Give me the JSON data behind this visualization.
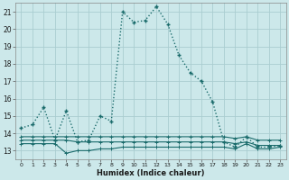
{
  "xlabel": "Humidex (Indice chaleur)",
  "bg_color": "#cce8ea",
  "grid_color": "#aacdd0",
  "line_color": "#1a6b6b",
  "xlim": [
    -0.5,
    23.5
  ],
  "ylim": [
    12.5,
    21.5
  ],
  "yticks": [
    13,
    14,
    15,
    16,
    17,
    18,
    19,
    20,
    21
  ],
  "xtick_labels": [
    "0",
    "1",
    "2",
    "3",
    "4",
    "5",
    "6",
    "7",
    "8",
    "9",
    "10",
    "11",
    "12",
    "13",
    "14",
    "15",
    "16",
    "17",
    "18",
    "19",
    "20",
    "21",
    "22",
    "23"
  ],
  "series1_x": [
    0,
    1,
    2,
    3,
    4,
    5,
    6,
    7,
    8,
    9,
    10,
    11,
    12,
    13,
    14,
    15,
    16,
    17,
    18,
    19,
    20,
    21,
    22,
    23
  ],
  "series1_y": [
    14.3,
    14.5,
    15.5,
    13.6,
    15.3,
    13.5,
    13.6,
    15.0,
    14.7,
    21.0,
    20.4,
    20.5,
    21.3,
    20.3,
    18.5,
    17.5,
    17.0,
    15.8,
    13.5,
    13.2,
    13.8,
    13.2,
    13.2,
    13.3
  ],
  "series2_x": [
    0,
    1,
    2,
    3,
    4,
    5,
    6,
    7,
    8,
    9,
    10,
    11,
    12,
    13,
    14,
    15,
    16,
    17,
    18,
    19,
    20,
    21,
    22,
    23
  ],
  "series2_y": [
    13.8,
    13.8,
    13.8,
    13.8,
    13.8,
    13.8,
    13.8,
    13.8,
    13.8,
    13.8,
    13.8,
    13.8,
    13.8,
    13.8,
    13.8,
    13.8,
    13.8,
    13.8,
    13.8,
    13.7,
    13.8,
    13.6,
    13.6,
    13.6
  ],
  "series3_x": [
    0,
    1,
    2,
    3,
    4,
    5,
    6,
    7,
    8,
    9,
    10,
    11,
    12,
    13,
    14,
    15,
    16,
    17,
    18,
    19,
    20,
    21,
    22,
    23
  ],
  "series3_y": [
    13.6,
    13.6,
    13.6,
    13.6,
    13.6,
    13.5,
    13.5,
    13.5,
    13.5,
    13.5,
    13.5,
    13.5,
    13.5,
    13.5,
    13.5,
    13.5,
    13.5,
    13.5,
    13.5,
    13.4,
    13.5,
    13.3,
    13.3,
    13.3
  ],
  "series4_x": [
    0,
    1,
    2,
    3,
    4,
    5,
    6,
    7,
    8,
    9,
    10,
    11,
    12,
    13,
    14,
    15,
    16,
    17,
    18,
    19,
    20,
    21,
    22,
    23
  ],
  "series4_y": [
    13.4,
    13.4,
    13.4,
    13.4,
    12.85,
    13.0,
    13.0,
    13.1,
    13.1,
    13.2,
    13.2,
    13.2,
    13.2,
    13.2,
    13.2,
    13.2,
    13.2,
    13.2,
    13.2,
    13.1,
    13.4,
    13.1,
    13.1,
    13.2
  ]
}
